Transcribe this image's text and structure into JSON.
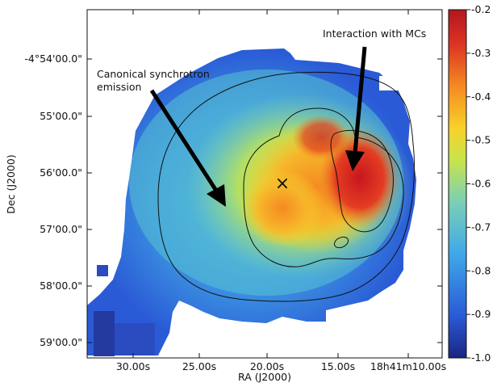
{
  "chart_data": {
    "type": "heatmap",
    "title": "",
    "xlabel": "RA (J2000)",
    "ylabel": "Dec (J2000)",
    "x_ticks": [
      "30.00s",
      "25.00s",
      "20.00s",
      "15.00s",
      "18h41m10.00s"
    ],
    "y_ticks": [
      "-4°54'00.0\"",
      "55'00.0\"",
      "56'00.0\"",
      "57'00.0\"",
      "58'00.0\"",
      "59'00.0\""
    ],
    "colorbar": {
      "ticks": [
        "-0.2",
        "-0.3",
        "-0.4",
        "-0.5",
        "-0.6",
        "-0.7",
        "-0.8",
        "-0.9",
        "-1.0"
      ],
      "range": [
        -1.0,
        -0.2
      ],
      "colormap": [
        "#1a2580",
        "#2a5ad6",
        "#3fa9e8",
        "#7cd0b4",
        "#c9e44a",
        "#f7d229",
        "#f48a22",
        "#dc3424",
        "#b4161e"
      ]
    },
    "annotations": [
      {
        "text": "Interaction with MCs"
      },
      {
        "text": "Canonical synchrotron emission"
      }
    ],
    "marker": {
      "symbol": "×"
    }
  }
}
